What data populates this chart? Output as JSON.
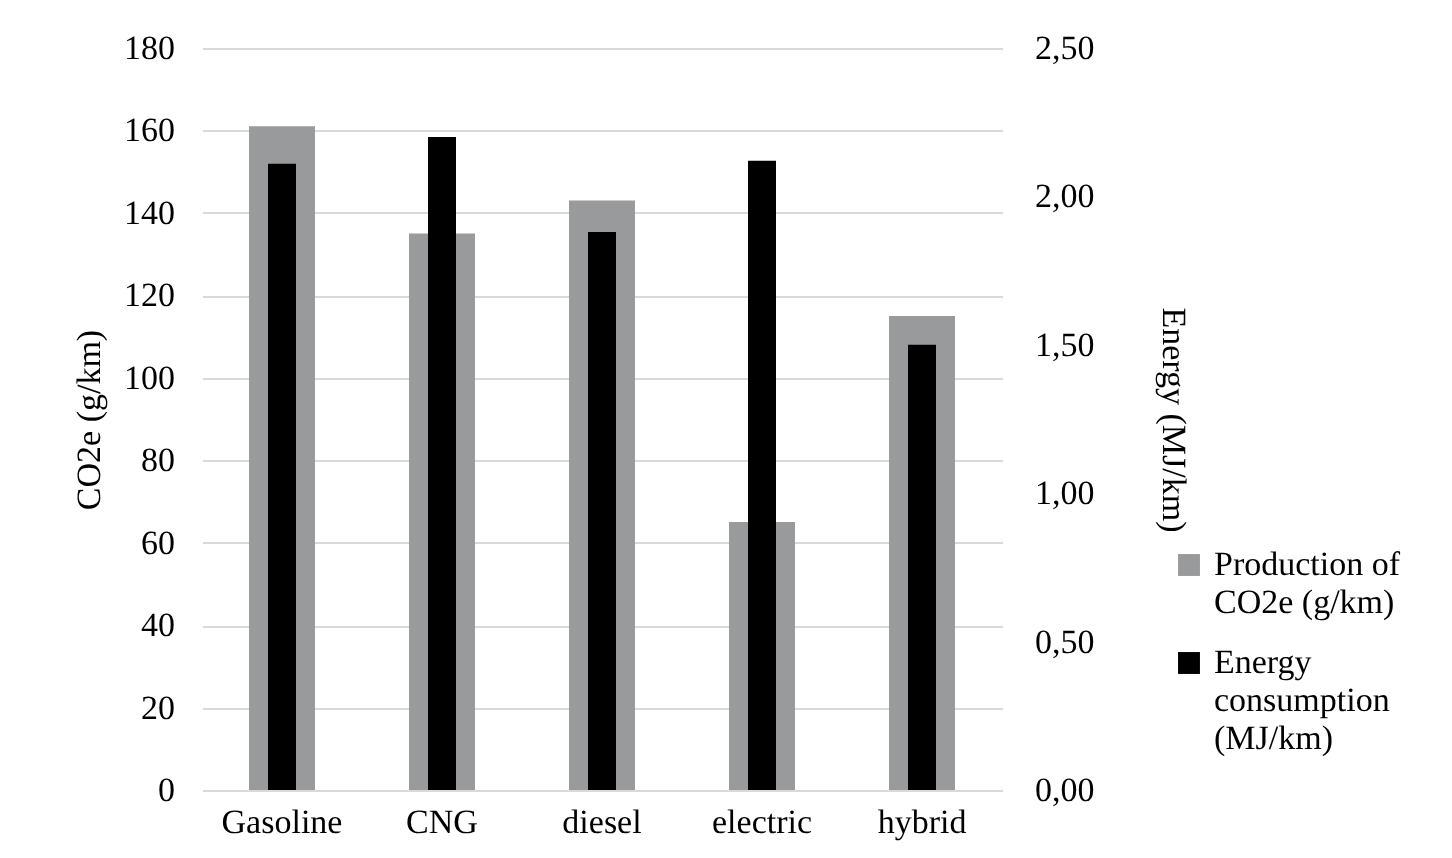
{
  "chart_data": {
    "type": "bar",
    "ylabel": "CO2e (g/km)",
    "y2label": "Energy (MJ/km)",
    "categories": [
      "Gasoline",
      "CNG",
      "diesel",
      "electric",
      "hybrid"
    ],
    "series": [
      {
        "name": "Production of CO2e (g/km)",
        "color": "#999a9c",
        "values": [
          161,
          135,
          143,
          65,
          115
        ]
      },
      {
        "name": "Energy consumption (MJ/km)",
        "color": "#000000",
        "axis": "y2",
        "values": [
          2.11,
          2.2,
          1.88,
          2.12,
          1.5
        ]
      }
    ],
    "ylim": [
      0,
      180
    ],
    "yticks": [
      0,
      20,
      40,
      60,
      80,
      100,
      120,
      140,
      160,
      180
    ],
    "y2lim": [
      0,
      2.5
    ],
    "y2ticks": [
      {
        "value": 0,
        "label": "0,00"
      },
      {
        "value": 0.5,
        "label": "0,50"
      },
      {
        "value": 1,
        "label": "1,00"
      },
      {
        "value": 1.5,
        "label": "1,50"
      },
      {
        "value": 2,
        "label": "2,00"
      },
      {
        "value": 2.5,
        "label": "2,50"
      }
    ],
    "grid": "y",
    "legend": "right"
  }
}
